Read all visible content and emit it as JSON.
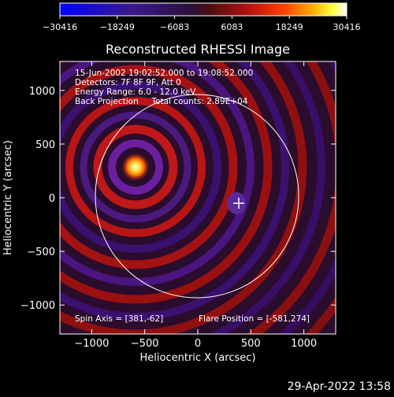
{
  "colorbar": {
    "ticks": [
      "−30416",
      "−18249",
      "−6083",
      "6083",
      "18249",
      "30416"
    ],
    "gradient": [
      "#0000ff",
      "#3a1a8a",
      "#2b0f3f",
      "#4a0f10",
      "#b01010",
      "#ff4000",
      "#ffaa00",
      "#ffff40",
      "#ffffff"
    ]
  },
  "plot": {
    "title": "Reconstructed RHESSI Image",
    "xlabel": "Heliocentric X (arcsec)",
    "ylabel": "Heliocentric Y (arcsec)",
    "xticks": [
      "−1000",
      "−500",
      "0",
      "500",
      "1000"
    ],
    "yticks": [
      "1000",
      "500",
      "0",
      "−500",
      "−1000"
    ]
  },
  "annotations": {
    "line1": "15-Jun-2002 19:02:52.000 to 19:08:52.000",
    "line2": "Detectors: 7F 8F 9F, Att 0",
    "line3": "Energy Range: 6.0 - 12.0 keV",
    "line4": "Back Projection     Total counts: 2.89E+04",
    "spin_axis": "Spin Axis = [381,-62]",
    "flare_position": "Flare Position = [-581,274]"
  },
  "timestamp": "29-Apr-2022 13:58"
}
